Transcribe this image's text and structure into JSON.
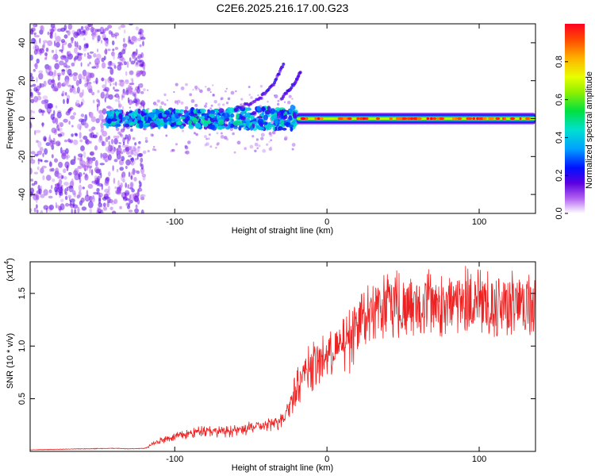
{
  "title": "C2E6.2025.216.17.00.G23",
  "chart_data": [
    {
      "type": "heatmap",
      "panel": "spectrogram",
      "xlabel": "Height of straight line (km)",
      "ylabel": "Frequency (Hz)",
      "xlim": [
        -195,
        137
      ],
      "ylim": [
        -50,
        50
      ],
      "xticks": [
        -100,
        0,
        100
      ],
      "xtick_labels": [
        "-100",
        "0",
        "100"
      ],
      "yticks": [
        -40,
        -20,
        0,
        20,
        40
      ],
      "ytick_labels": [
        "-40",
        "-20",
        "0",
        "20",
        "40"
      ],
      "colorbar": {
        "label": "Normalized spectral amplitude",
        "range": [
          0,
          1
        ],
        "ticks": [
          0.0,
          0.2,
          0.4,
          0.6,
          0.8
        ],
        "tick_labels": [
          "0.0",
          "0.2",
          "0.4",
          "0.6",
          "0.8"
        ],
        "colormap": "rainbow (purple-blue-cyan-green-yellow-orange-red)"
      },
      "features": [
        {
          "description": "scattered low-amplitude noise",
          "x_range": [
            -195,
            -120
          ],
          "freq_range": [
            -50,
            50
          ],
          "amplitude": 0.1
        },
        {
          "description": "noisy band around 0 Hz",
          "x_range": [
            -145,
            -20
          ],
          "freq_range": [
            -8,
            8
          ],
          "amplitude": 0.3
        },
        {
          "description": "stable carrier line at 0 Hz",
          "x_range": [
            -20,
            137
          ],
          "freq_range": [
            -3,
            3
          ],
          "amplitude_edge": 0.4,
          "amplitude_center": 0.9
        },
        {
          "description": "upward drifting branch",
          "points": [
            [
              -60,
              5
            ],
            [
              -45,
              10
            ],
            [
              -35,
              18
            ],
            [
              -28,
              30
            ]
          ]
        },
        {
          "description": "second upward branch",
          "points": [
            [
              -30,
              10
            ],
            [
              -22,
              18
            ],
            [
              -17,
              25
            ]
          ]
        }
      ]
    },
    {
      "type": "line",
      "panel": "snr",
      "xlabel": "Height of straight line (km)",
      "ylabel": "SNR (10 * v/v)",
      "yscale_label": "(x10",
      "yscale_exponent": "4",
      "xlim": [
        -195,
        137
      ],
      "ylim": [
        0,
        18000
      ],
      "xticks": [
        -100,
        0,
        100
      ],
      "xtick_labels": [
        "-100",
        "0",
        "100"
      ],
      "yticks": [
        5000,
        10000,
        15000
      ],
      "ytick_labels": [
        "0.5",
        "1.0",
        "1.5"
      ],
      "color": "#ee2222",
      "series": [
        {
          "x": [
            -195,
            -180,
            -160,
            -140,
            -130,
            -120,
            -110,
            -100,
            -90,
            -80,
            -70,
            -60,
            -50,
            -40,
            -30,
            -25,
            -20,
            -15,
            -10,
            -5,
            0,
            5,
            10,
            15,
            20,
            25,
            30,
            40,
            50,
            60,
            70,
            80,
            90,
            100,
            110,
            120,
            130,
            137
          ],
          "y": [
            150,
            200,
            250,
            300,
            250,
            300,
            1100,
            1500,
            1800,
            2200,
            2000,
            2100,
            2400,
            2600,
            3200,
            4500,
            6500,
            8000,
            8800,
            9200,
            9500,
            10000,
            10500,
            11500,
            13000,
            14000,
            14800,
            15200,
            15400,
            15500,
            15500,
            15400,
            15700,
            15600,
            15500,
            15400,
            15400,
            15400
          ]
        }
      ]
    }
  ]
}
